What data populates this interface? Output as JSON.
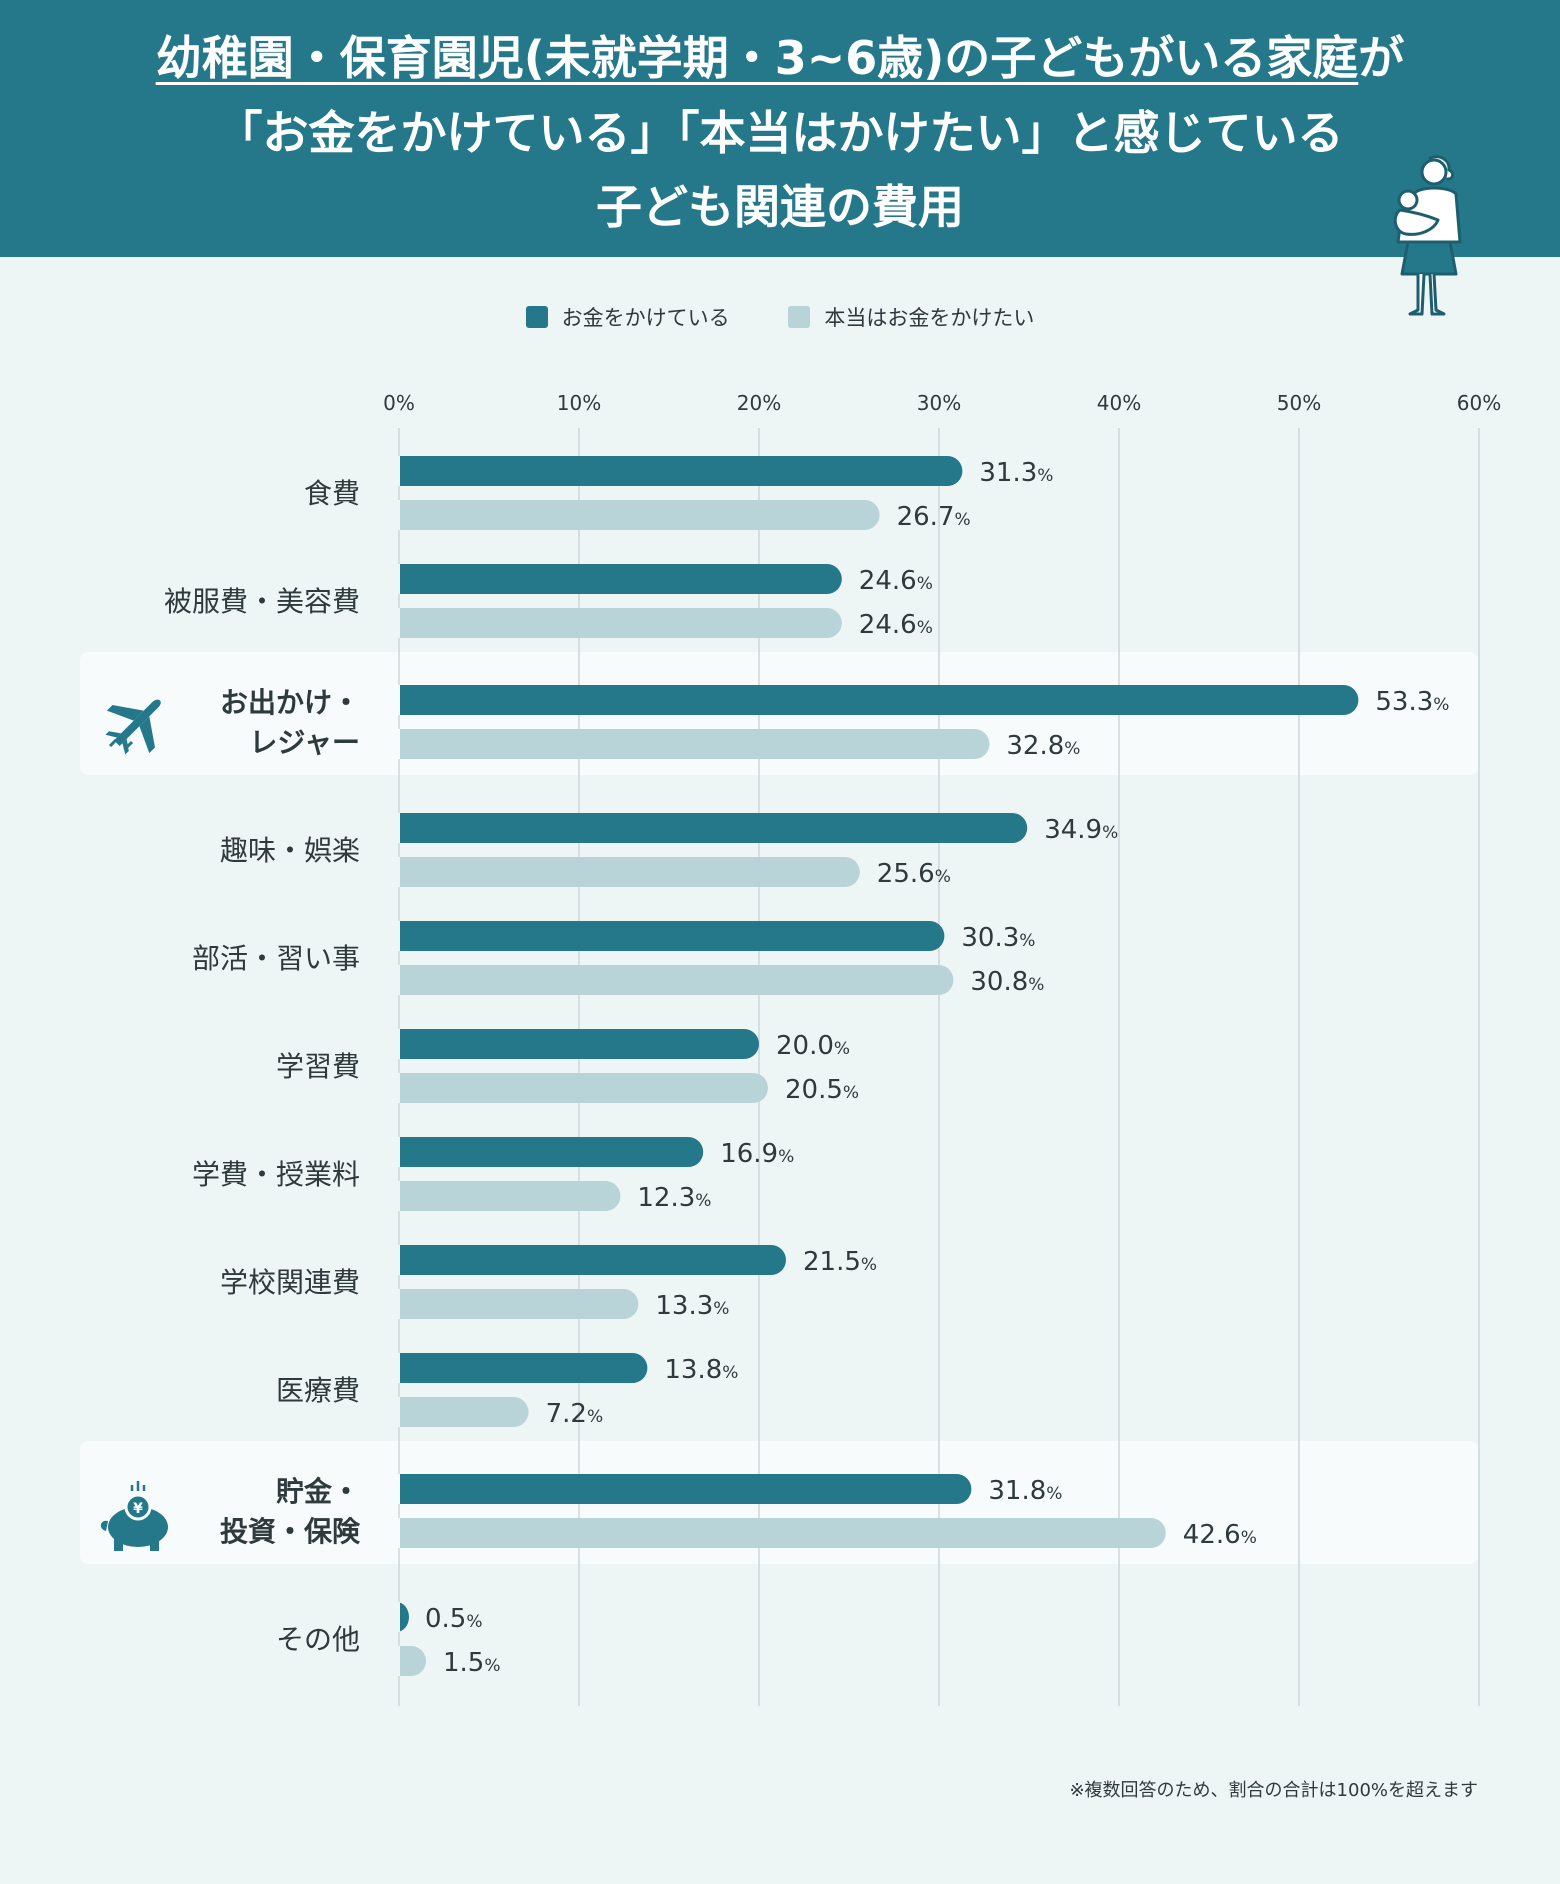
{
  "header": {
    "title_line1_underlined": "幼稚園・保育園児(未就学期・3~6歳)の子どもがいる家庭",
    "title_line1_rest": "が",
    "title_line2": "「お金をかけている」「本当はかけたい」と感じている",
    "title_line3": "子ども関連の費用"
  },
  "legend": {
    "items": [
      {
        "label": "お金をかけている",
        "color": "#25788a"
      },
      {
        "label": "本当はお金をかけたい",
        "color": "#b8d4d8"
      }
    ]
  },
  "note": "※複数回答のため、割合の合計は100%を超えます",
  "chart_data": {
    "type": "bar",
    "orientation": "horizontal",
    "xlim": [
      0,
      60
    ],
    "xticks": [
      "0%",
      "10%",
      "20%",
      "30%",
      "40%",
      "50%",
      "60%"
    ],
    "value_suffix": "%",
    "grid": true,
    "legend_position": "top-center",
    "categories": [
      {
        "label": [
          "食費"
        ],
        "highlight": false,
        "icon": ""
      },
      {
        "label": [
          "被服費・美容費"
        ],
        "highlight": false,
        "icon": ""
      },
      {
        "label": [
          "お出かけ・",
          "レジャー"
        ],
        "highlight": true,
        "icon": "airplane-icon"
      },
      {
        "label": [
          "趣味・娯楽"
        ],
        "highlight": false,
        "icon": ""
      },
      {
        "label": [
          "部活・習い事"
        ],
        "highlight": false,
        "icon": ""
      },
      {
        "label": [
          "学習費"
        ],
        "highlight": false,
        "icon": ""
      },
      {
        "label": [
          "学費・授業料"
        ],
        "highlight": false,
        "icon": ""
      },
      {
        "label": [
          "学校関連費"
        ],
        "highlight": false,
        "icon": ""
      },
      {
        "label": [
          "医療費"
        ],
        "highlight": false,
        "icon": ""
      },
      {
        "label": [
          "貯金・",
          "投資・保険"
        ],
        "highlight": true,
        "icon": "piggy-bank-icon"
      },
      {
        "label": [
          "その他"
        ],
        "highlight": false,
        "icon": ""
      }
    ],
    "series": [
      {
        "name": "お金をかけている",
        "color": "#25788a",
        "values": [
          "31.3",
          "24.6",
          "53.3",
          "34.9",
          "30.3",
          "20.0",
          "16.9",
          "21.5",
          "13.8",
          "31.8",
          "0.5"
        ]
      },
      {
        "name": "本当はお金をかけたい",
        "color": "#b8d4d8",
        "values": [
          "26.7",
          "24.6",
          "32.8",
          "25.6",
          "30.8",
          "20.5",
          "12.3",
          "13.3",
          "7.2",
          "42.6",
          "1.5"
        ]
      }
    ]
  }
}
